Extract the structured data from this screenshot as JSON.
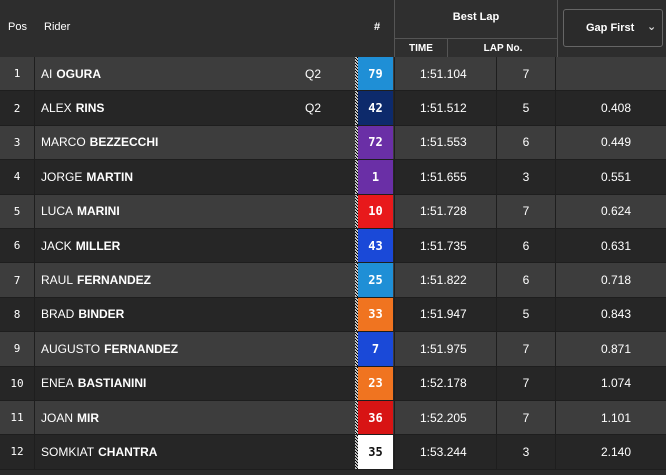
{
  "header": {
    "pos": "Pos",
    "rider": "Rider",
    "number": "#",
    "best_lap": "Best Lap",
    "time": "TIME",
    "lap_no": "LAP No.",
    "gap_first": "Gap First",
    "gap_chevron": "⌄"
  },
  "rows": [
    {
      "pos": "1",
      "first": "AI",
      "last": "OGURA",
      "q": "Q2",
      "num": "79",
      "color": "#1f8fd6",
      "text_color": "#ffffff",
      "time": "1:51.104",
      "lap": "7",
      "gap": ""
    },
    {
      "pos": "2",
      "first": "ALEX",
      "last": "RINS",
      "q": "Q2",
      "num": "42",
      "color": "#0d2a6b",
      "text_color": "#ffffff",
      "time": "1:51.512",
      "lap": "5",
      "gap": "0.408"
    },
    {
      "pos": "3",
      "first": "MARCO",
      "last": "BEZZECCHI",
      "q": "",
      "num": "72",
      "color": "#6a2fa6",
      "text_color": "#ffffff",
      "time": "1:51.553",
      "lap": "6",
      "gap": "0.449"
    },
    {
      "pos": "4",
      "first": "JORGE",
      "last": "MARTIN",
      "q": "",
      "num": "1",
      "color": "#6a2fa6",
      "text_color": "#ffffff",
      "time": "1:51.655",
      "lap": "3",
      "gap": "0.551"
    },
    {
      "pos": "5",
      "first": "LUCA",
      "last": "MARINI",
      "q": "",
      "num": "10",
      "color": "#e8191b",
      "text_color": "#ffffff",
      "time": "1:51.728",
      "lap": "7",
      "gap": "0.624"
    },
    {
      "pos": "6",
      "first": "JACK",
      "last": "MILLER",
      "q": "",
      "num": "43",
      "color": "#1a49d8",
      "text_color": "#ffffff",
      "time": "1:51.735",
      "lap": "6",
      "gap": "0.631"
    },
    {
      "pos": "7",
      "first": "RAUL",
      "last": "FERNANDEZ",
      "q": "",
      "num": "25",
      "color": "#1f8fd6",
      "text_color": "#ffffff",
      "time": "1:51.822",
      "lap": "6",
      "gap": "0.718"
    },
    {
      "pos": "8",
      "first": "BRAD",
      "last": "BINDER",
      "q": "",
      "num": "33",
      "color": "#f07420",
      "text_color": "#ffffff",
      "time": "1:51.947",
      "lap": "5",
      "gap": "0.843"
    },
    {
      "pos": "9",
      "first": "AUGUSTO",
      "last": "FERNANDEZ",
      "q": "",
      "num": "7",
      "color": "#1a49d8",
      "text_color": "#ffffff",
      "time": "1:51.975",
      "lap": "7",
      "gap": "0.871"
    },
    {
      "pos": "10",
      "first": "ENEA",
      "last": "BASTIANINI",
      "q": "",
      "num": "23",
      "color": "#f07420",
      "text_color": "#ffffff",
      "time": "1:52.178",
      "lap": "7",
      "gap": "1.074"
    },
    {
      "pos": "11",
      "first": "JOAN",
      "last": "MIR",
      "q": "",
      "num": "36",
      "color": "#d81414",
      "text_color": "#ffffff",
      "time": "1:52.205",
      "lap": "7",
      "gap": "1.101"
    },
    {
      "pos": "12",
      "first": "SOMKIAT",
      "last": "CHANTRA",
      "q": "",
      "num": "35",
      "color": "#ffffff",
      "text_color": "#111111",
      "time": "1:53.244",
      "lap": "3",
      "gap": "2.140"
    }
  ]
}
